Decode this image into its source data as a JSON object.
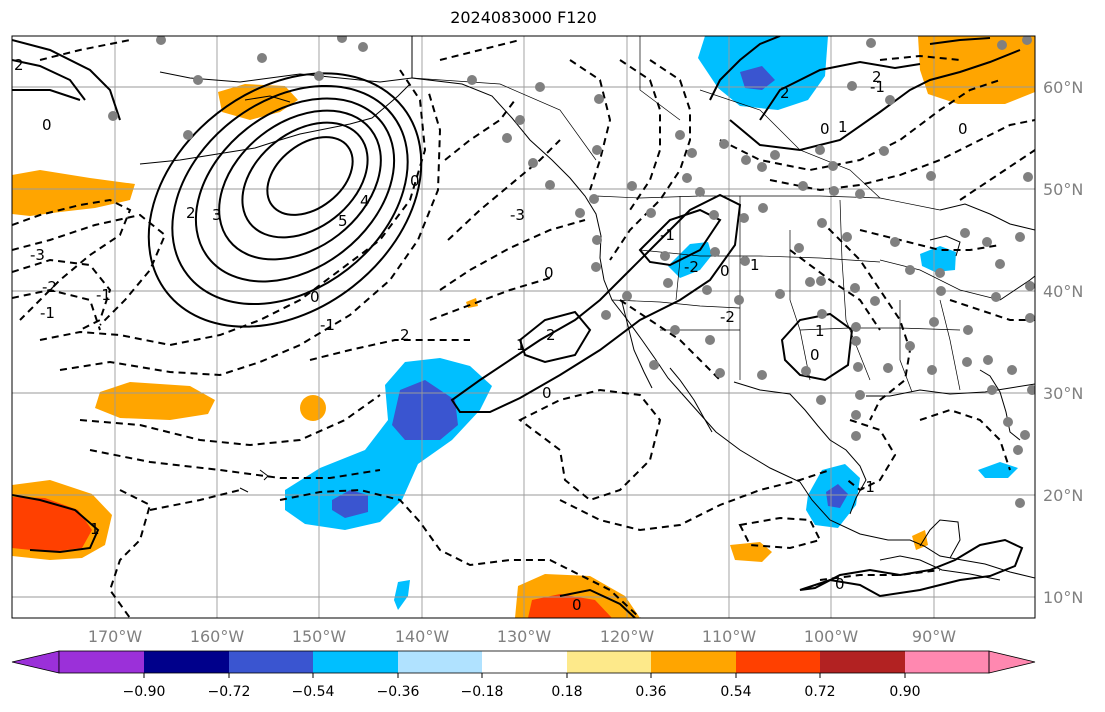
{
  "title": "2024083000 F120",
  "map": {
    "lon_labels": [
      "170°W",
      "160°W",
      "150°W",
      "140°W",
      "130°W",
      "120°W",
      "110°W",
      "100°W",
      "90°W"
    ],
    "lat_labels": [
      "60°N",
      "50°N",
      "40°N",
      "30°N",
      "20°N",
      "10°N"
    ],
    "label_color": "#808080",
    "contour_labels": [
      "2",
      "0",
      "-3",
      "-2",
      "-1",
      "3",
      "2",
      "5",
      "4",
      "0",
      "0",
      "-3",
      "2",
      "1",
      "-1",
      "0",
      "2",
      "0",
      "-1",
      "1",
      "0",
      "-1",
      "-2",
      "2",
      "0",
      "1",
      "-1",
      "0",
      "1",
      "0",
      "2",
      "1",
      "0",
      "-2",
      "-1",
      "0"
    ],
    "station_dot_color": "#808080"
  },
  "colorbar": {
    "ticks": [
      "−0.90",
      "−0.72",
      "−0.54",
      "−0.36",
      "−0.18",
      "0.18",
      "0.36",
      "0.54",
      "0.72",
      "0.90"
    ],
    "colors": [
      "#9b30d9",
      "#00008b",
      "#3a55d0",
      "#00bfff",
      "#b0e2ff",
      "#ffffff",
      "#fde98a",
      "#ffa500",
      "#ff4000",
      "#b22222",
      "#ff88b0"
    ]
  }
}
